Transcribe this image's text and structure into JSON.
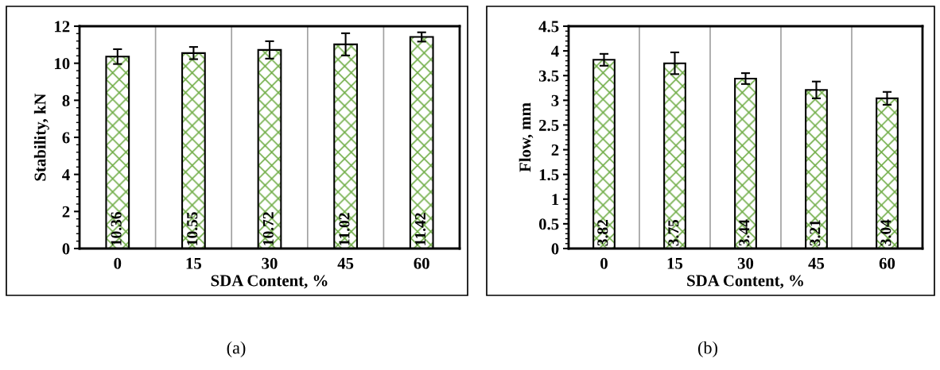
{
  "chart_data": [
    {
      "type": "bar",
      "xlabel": "SDA Content, %",
      "ylabel": "Stability, kN",
      "categories": [
        "0",
        "15",
        "30",
        "45",
        "60"
      ],
      "values": [
        10.36,
        10.55,
        10.72,
        11.02,
        11.42
      ],
      "errors": [
        0.4,
        0.33,
        0.47,
        0.6,
        0.25
      ],
      "color": "#70ad47",
      "data_labels": true,
      "ylim": [
        0,
        12
      ],
      "yticks": [
        0,
        2,
        4,
        6,
        8,
        10,
        12
      ],
      "grid": "x",
      "legend": false,
      "annotations": [
        "(a)"
      ]
    },
    {
      "type": "bar",
      "xlabel": "SDA Content, %",
      "ylabel": "Flow, mm",
      "categories": [
        "0",
        "15",
        "30",
        "45",
        "60"
      ],
      "values": [
        3.82,
        3.75,
        3.44,
        3.21,
        3.04
      ],
      "errors": [
        0.12,
        0.22,
        0.11,
        0.17,
        0.13
      ],
      "color": "#70ad47",
      "data_labels": true,
      "ylim": [
        0,
        4.5
      ],
      "yticks": [
        0,
        0.5,
        1,
        1.5,
        2,
        2.5,
        3,
        3.5,
        4,
        4.5
      ],
      "grid": "x",
      "legend": false,
      "annotations": [
        "(b)"
      ]
    }
  ]
}
